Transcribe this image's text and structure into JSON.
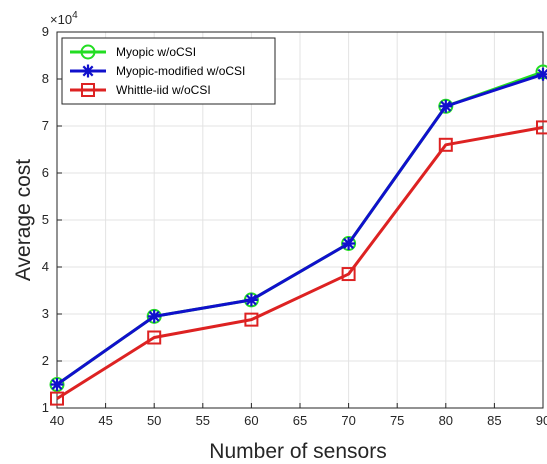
{
  "chart_data": {
    "type": "line",
    "xlabel": "Number of sensors",
    "ylabel": "Average cost",
    "y_multiplier_text": "×10",
    "y_multiplier_exponent": "4",
    "xlim": [
      40,
      90
    ],
    "ylim": [
      1,
      9
    ],
    "xticks": [
      40,
      45,
      50,
      55,
      60,
      65,
      70,
      75,
      80,
      85,
      90
    ],
    "yticks": [
      1,
      2,
      3,
      4,
      5,
      6,
      7,
      8,
      9
    ],
    "grid": true,
    "legend_position": "top-left",
    "x": [
      40,
      50,
      60,
      70,
      80,
      90
    ],
    "series": [
      {
        "name": "Myopic w/oCSI",
        "values": [
          1.5,
          2.95,
          3.3,
          4.5,
          7.42,
          8.15
        ],
        "color": "#22dd22",
        "marker": "circle"
      },
      {
        "name": "Myopic-modified w/oCSI",
        "values": [
          1.5,
          2.95,
          3.3,
          4.5,
          7.42,
          8.1
        ],
        "color": "#1010cc",
        "marker": "asterisk"
      },
      {
        "name": "Whittle-iid w/oCSI",
        "values": [
          1.2,
          2.5,
          2.88,
          3.85,
          6.6,
          6.97
        ],
        "color": "#dd2222",
        "marker": "square"
      }
    ]
  }
}
